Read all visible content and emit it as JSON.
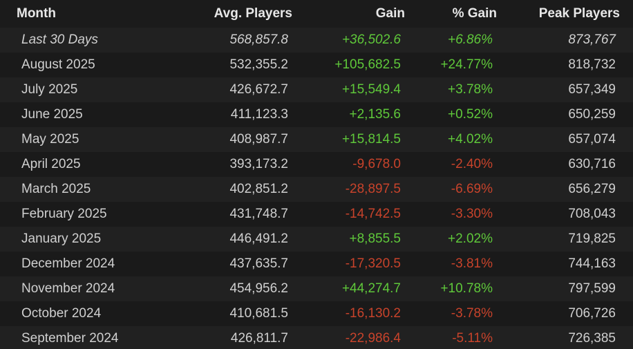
{
  "colors": {
    "positive": "#5fc83a",
    "negative": "#c8432b"
  },
  "header": {
    "month": "Month",
    "avg": "Avg. Players",
    "gain": "Gain",
    "pct": "% Gain",
    "peak": "Peak Players"
  },
  "rows": [
    {
      "month": "Last 30 Days",
      "avg": "568,857.8",
      "gain": "+36,502.6",
      "pct": "+6.86%",
      "peak": "873,767",
      "trend": "pos"
    },
    {
      "month": "August 2025",
      "avg": "532,355.2",
      "gain": "+105,682.5",
      "pct": "+24.77%",
      "peak": "818,732",
      "trend": "pos"
    },
    {
      "month": "July 2025",
      "avg": "426,672.7",
      "gain": "+15,549.4",
      "pct": "+3.78%",
      "peak": "657,349",
      "trend": "pos"
    },
    {
      "month": "June 2025",
      "avg": "411,123.3",
      "gain": "+2,135.6",
      "pct": "+0.52%",
      "peak": "650,259",
      "trend": "pos"
    },
    {
      "month": "May 2025",
      "avg": "408,987.7",
      "gain": "+15,814.5",
      "pct": "+4.02%",
      "peak": "657,074",
      "trend": "pos"
    },
    {
      "month": "April 2025",
      "avg": "393,173.2",
      "gain": "-9,678.0",
      "pct": "-2.40%",
      "peak": "630,716",
      "trend": "neg"
    },
    {
      "month": "March 2025",
      "avg": "402,851.2",
      "gain": "-28,897.5",
      "pct": "-6.69%",
      "peak": "656,279",
      "trend": "neg"
    },
    {
      "month": "February 2025",
      "avg": "431,748.7",
      "gain": "-14,742.5",
      "pct": "-3.30%",
      "peak": "708,043",
      "trend": "neg"
    },
    {
      "month": "January 2025",
      "avg": "446,491.2",
      "gain": "+8,855.5",
      "pct": "+2.02%",
      "peak": "719,825",
      "trend": "pos"
    },
    {
      "month": "December 2024",
      "avg": "437,635.7",
      "gain": "-17,320.5",
      "pct": "-3.81%",
      "peak": "744,163",
      "trend": "neg"
    },
    {
      "month": "November 2024",
      "avg": "454,956.2",
      "gain": "+44,274.7",
      "pct": "+10.78%",
      "peak": "797,599",
      "trend": "pos"
    },
    {
      "month": "October 2024",
      "avg": "410,681.5",
      "gain": "-16,130.2",
      "pct": "-3.78%",
      "peak": "706,726",
      "trend": "neg"
    },
    {
      "month": "September 2024",
      "avg": "426,811.7",
      "gain": "-22,986.4",
      "pct": "-5.11%",
      "peak": "726,385",
      "trend": "neg"
    }
  ]
}
